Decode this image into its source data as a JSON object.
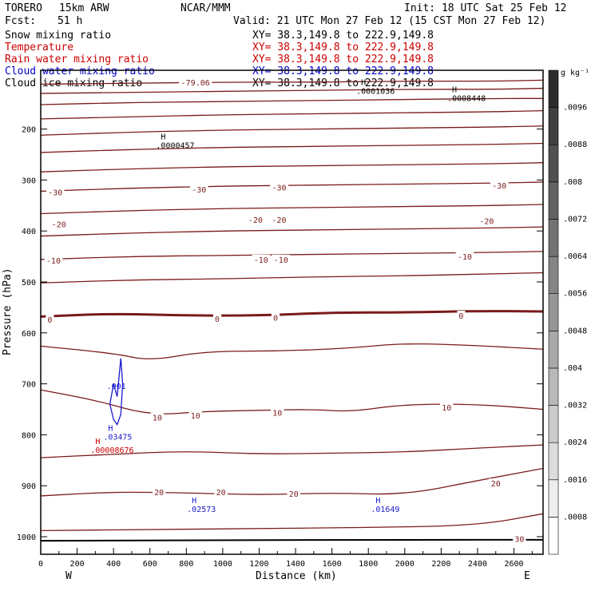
{
  "header": {
    "model": "TORERO",
    "resolution": "15km ARW",
    "center": "NCAR/MMM",
    "init": "Init: 18 UTC Sat 25 Feb 12",
    "fcst_label": "Fcst:",
    "fcst_value": "51 h",
    "valid": "Valid: 21 UTC Mon 27 Feb 12 (15 CST Mon 27 Feb 12)"
  },
  "fields": [
    {
      "name": "Snow mixing ratio",
      "xy": "XY=  38.3,149.8 to 222.9,149.8",
      "color": "#000000"
    },
    {
      "name": "Temperature",
      "xy": "XY=  38.3,149.8 to 222.9,149.8",
      "color": "#cc0000"
    },
    {
      "name": "Rain water mixing ratio",
      "xy": "XY=  38.3,149.8 to 222.9,149.8",
      "color": "#cc0000"
    },
    {
      "name": "Cloud water mixing ratio",
      "xy": "XY=  38.3,149.8 to 222.9,149.8",
      "color": "#0000cc"
    },
    {
      "name": "Cloud ice mixing ratio",
      "xy": "XY=  38.3,149.8 to 222.9,149.8",
      "color": "#000000"
    }
  ],
  "colors": {
    "temperature": "#7a1a1a",
    "cloud_water": "#1a1acc",
    "rain": "#cc0000",
    "axis": "#000000"
  },
  "chart_data": {
    "type": "contour",
    "xlabel": "Distance (km)",
    "ylabel": "Pressure (hPa)",
    "xlim": [
      0,
      2760
    ],
    "ylim": [
      1050,
      100
    ],
    "x_ticks": [
      0,
      200,
      400,
      600,
      800,
      1000,
      1200,
      1400,
      1600,
      1800,
      2000,
      2200,
      2400,
      2600
    ],
    "x_tick_labels": [
      "0",
      "200",
      "400",
      "600",
      "800",
      "1000",
      "1200",
      "1400",
      "1600",
      "1800",
      "2000",
      "2200",
      "2400",
      "2600"
    ],
    "y_ticks": [
      200,
      300,
      400,
      500,
      600,
      700,
      800,
      900,
      1000
    ],
    "y_tick_labels": [
      "200",
      "300",
      "400",
      "500",
      "600",
      "700",
      "800",
      "900",
      "1000"
    ],
    "x_end_labels": {
      "left": "W",
      "right": "E"
    },
    "colorbar": {
      "unit_label": "g kg⁻¹",
      "values": [
        0,
        0.0008,
        0.0016,
        0.0024,
        0.0032,
        0.004,
        0.0048,
        0.0056,
        0.0064,
        0.0072,
        0.008,
        0.0088,
        0.0096
      ],
      "labels": [
        ".0096",
        ".0088",
        ".008",
        ".0072",
        ".0064",
        ".0056",
        ".0048",
        ".004",
        ".0032",
        ".0024",
        ".0016",
        ".0008"
      ]
    },
    "temperature_contours": [
      {
        "x": [
          0,
          1000,
          2000,
          2760
        ],
        "p": [
          1008,
          1007,
          1006,
          1006
        ]
      },
      {
        "x": [
          0,
          600,
          1200,
          1800,
          2400,
          2760
        ],
        "p": [
          988,
          986,
          984,
          982,
          978,
          955
        ]
      },
      {
        "x": [
          0,
          400,
          800,
          1200,
          1600,
          2000,
          2400,
          2760
        ],
        "p": [
          920,
          912,
          914,
          918,
          914,
          918,
          890,
          866
        ]
      },
      {
        "x": [
          0,
          400,
          800,
          1200,
          1600,
          2000,
          2400,
          2760
        ],
        "p": [
          845,
          838,
          832,
          838,
          836,
          834,
          826,
          820
        ]
      },
      {
        "x": [
          0,
          300,
          600,
          900,
          1200,
          1500,
          1700,
          2000,
          2400,
          2760
        ],
        "p": [
          712,
          732,
          762,
          754,
          752,
          750,
          755,
          740,
          740,
          750
        ]
      },
      {
        "x": [
          0,
          400,
          600,
          900,
          1300,
          1700,
          2000,
          2400,
          2760
        ],
        "p": [
          626,
          640,
          655,
          636,
          636,
          630,
          620,
          625,
          632
        ]
      },
      {
        "x": [
          0,
          400,
          800,
          1200,
          1600,
          2000,
          2400,
          2760
        ],
        "p": [
          568,
          562,
          566,
          566,
          560,
          560,
          557,
          558
        ]
      },
      {
        "x": [
          0,
          500,
          1000,
          1500,
          2000,
          2500,
          2760
        ],
        "p": [
          502,
          496,
          494,
          490,
          488,
          484,
          482
        ]
      },
      {
        "x": [
          0,
          500,
          1000,
          1500,
          2000,
          2500,
          2760
        ],
        "p": [
          456,
          450,
          448,
          446,
          444,
          442,
          440
        ]
      },
      {
        "x": [
          0,
          500,
          1000,
          1500,
          2000,
          2500,
          2760
        ],
        "p": [
          410,
          404,
          400,
          398,
          396,
          394,
          392
        ]
      },
      {
        "x": [
          0,
          500,
          1000,
          1500,
          2000,
          2500,
          2760
        ],
        "p": [
          366,
          360,
          356,
          354,
          352,
          350,
          348
        ]
      },
      {
        "x": [
          0,
          500,
          1000,
          1500,
          2000,
          2500,
          2760
        ],
        "p": [
          322,
          316,
          312,
          310,
          308,
          306,
          304
        ]
      },
      {
        "x": [
          0,
          500,
          1000,
          1500,
          2000,
          2500,
          2760
        ],
        "p": [
          284,
          278,
          274,
          272,
          270,
          268,
          266
        ]
      },
      {
        "x": [
          0,
          500,
          1000,
          1500,
          2000,
          2500,
          2760
        ],
        "p": [
          246,
          240,
          236,
          234,
          232,
          230,
          228
        ]
      },
      {
        "x": [
          0,
          500,
          1000,
          1500,
          2000,
          2500,
          2760
        ],
        "p": [
          212,
          206,
          202,
          200,
          198,
          196,
          194
        ]
      },
      {
        "x": [
          0,
          500,
          1000,
          1500,
          2000,
          2500,
          2760
        ],
        "p": [
          180,
          176,
          172,
          170,
          168,
          166,
          164
        ]
      },
      {
        "x": [
          0,
          500,
          1000,
          1500,
          2000,
          2500,
          2760
        ],
        "p": [
          152,
          148,
          146,
          144,
          142,
          140,
          140
        ]
      },
      {
        "x": [
          0,
          500,
          1000,
          1500,
          2000,
          2500,
          2760
        ],
        "p": [
          130,
          128,
          126,
          124,
          122,
          122,
          120
        ]
      },
      {
        "x": [
          0,
          500,
          1000,
          1500,
          2000,
          2500,
          2760
        ],
        "p": [
          112,
          110,
          108,
          108,
          106,
          106,
          104
        ]
      }
    ],
    "temperature_labels": [
      {
        "text": "-79.06",
        "x": 850,
        "p": 108
      },
      {
        "text": "-30",
        "x": 80,
        "p": 324
      },
      {
        "text": "-30",
        "x": 870,
        "p": 318
      },
      {
        "text": "-30",
        "x": 1310,
        "p": 314
      },
      {
        "text": "-30",
        "x": 2520,
        "p": 310
      },
      {
        "text": "-20",
        "x": 100,
        "p": 386
      },
      {
        "text": "-20",
        "x": 1180,
        "p": 378
      },
      {
        "text": "-20",
        "x": 1310,
        "p": 378
      },
      {
        "text": "-20",
        "x": 2450,
        "p": 380
      },
      {
        "text": "-10",
        "x": 70,
        "p": 458
      },
      {
        "text": "-10",
        "x": 1210,
        "p": 456
      },
      {
        "text": "-10",
        "x": 1320,
        "p": 456
      },
      {
        "text": "-10",
        "x": 2330,
        "p": 450
      },
      {
        "text": "0",
        "x": 50,
        "p": 574
      },
      {
        "text": "0",
        "x": 970,
        "p": 572
      },
      {
        "text": "0",
        "x": 1290,
        "p": 570
      },
      {
        "text": "0",
        "x": 2310,
        "p": 566
      },
      {
        "text": "10",
        "x": 640,
        "p": 766
      },
      {
        "text": "10",
        "x": 850,
        "p": 762
      },
      {
        "text": "10",
        "x": 1300,
        "p": 756
      },
      {
        "text": "10",
        "x": 2230,
        "p": 746
      },
      {
        "text": "20",
        "x": 650,
        "p": 912
      },
      {
        "text": "20",
        "x": 990,
        "p": 912
      },
      {
        "text": "20",
        "x": 1390,
        "p": 915
      },
      {
        "text": "20",
        "x": 2500,
        "p": 895
      },
      {
        "text": "30",
        "x": 2630,
        "p": 1004
      }
    ],
    "cloud_water_contour": {
      "label": ".001",
      "x": [
        420,
        400,
        380,
        400,
        420,
        440,
        450,
        440,
        420
      ],
      "p": [
        725,
        700,
        740,
        770,
        780,
        760,
        700,
        650,
        725
      ]
    },
    "extrema": [
      {
        "symbol": "H",
        "value": ".0000457",
        "x": 660,
        "p": 220,
        "field": "snow"
      },
      {
        "symbol": "H",
        "value": ".0008448",
        "x": 2260,
        "p": 128,
        "field": "snow"
      },
      {
        "symbol": "H",
        "value": ".0001036",
        "x": 1760,
        "p": 114,
        "field": "ice"
      },
      {
        "symbol": "H",
        "value": ".03475",
        "x": 370,
        "p": 792,
        "field": "cloud_water"
      },
      {
        "symbol": "H",
        "value": ".00008676",
        "x": 300,
        "p": 818,
        "field": "rain"
      },
      {
        "symbol": "H",
        "value": ".02573",
        "x": 830,
        "p": 934,
        "field": "cloud_water"
      },
      {
        "symbol": "H",
        "value": ".01649",
        "x": 1840,
        "p": 934,
        "field": "cloud_water"
      }
    ]
  }
}
